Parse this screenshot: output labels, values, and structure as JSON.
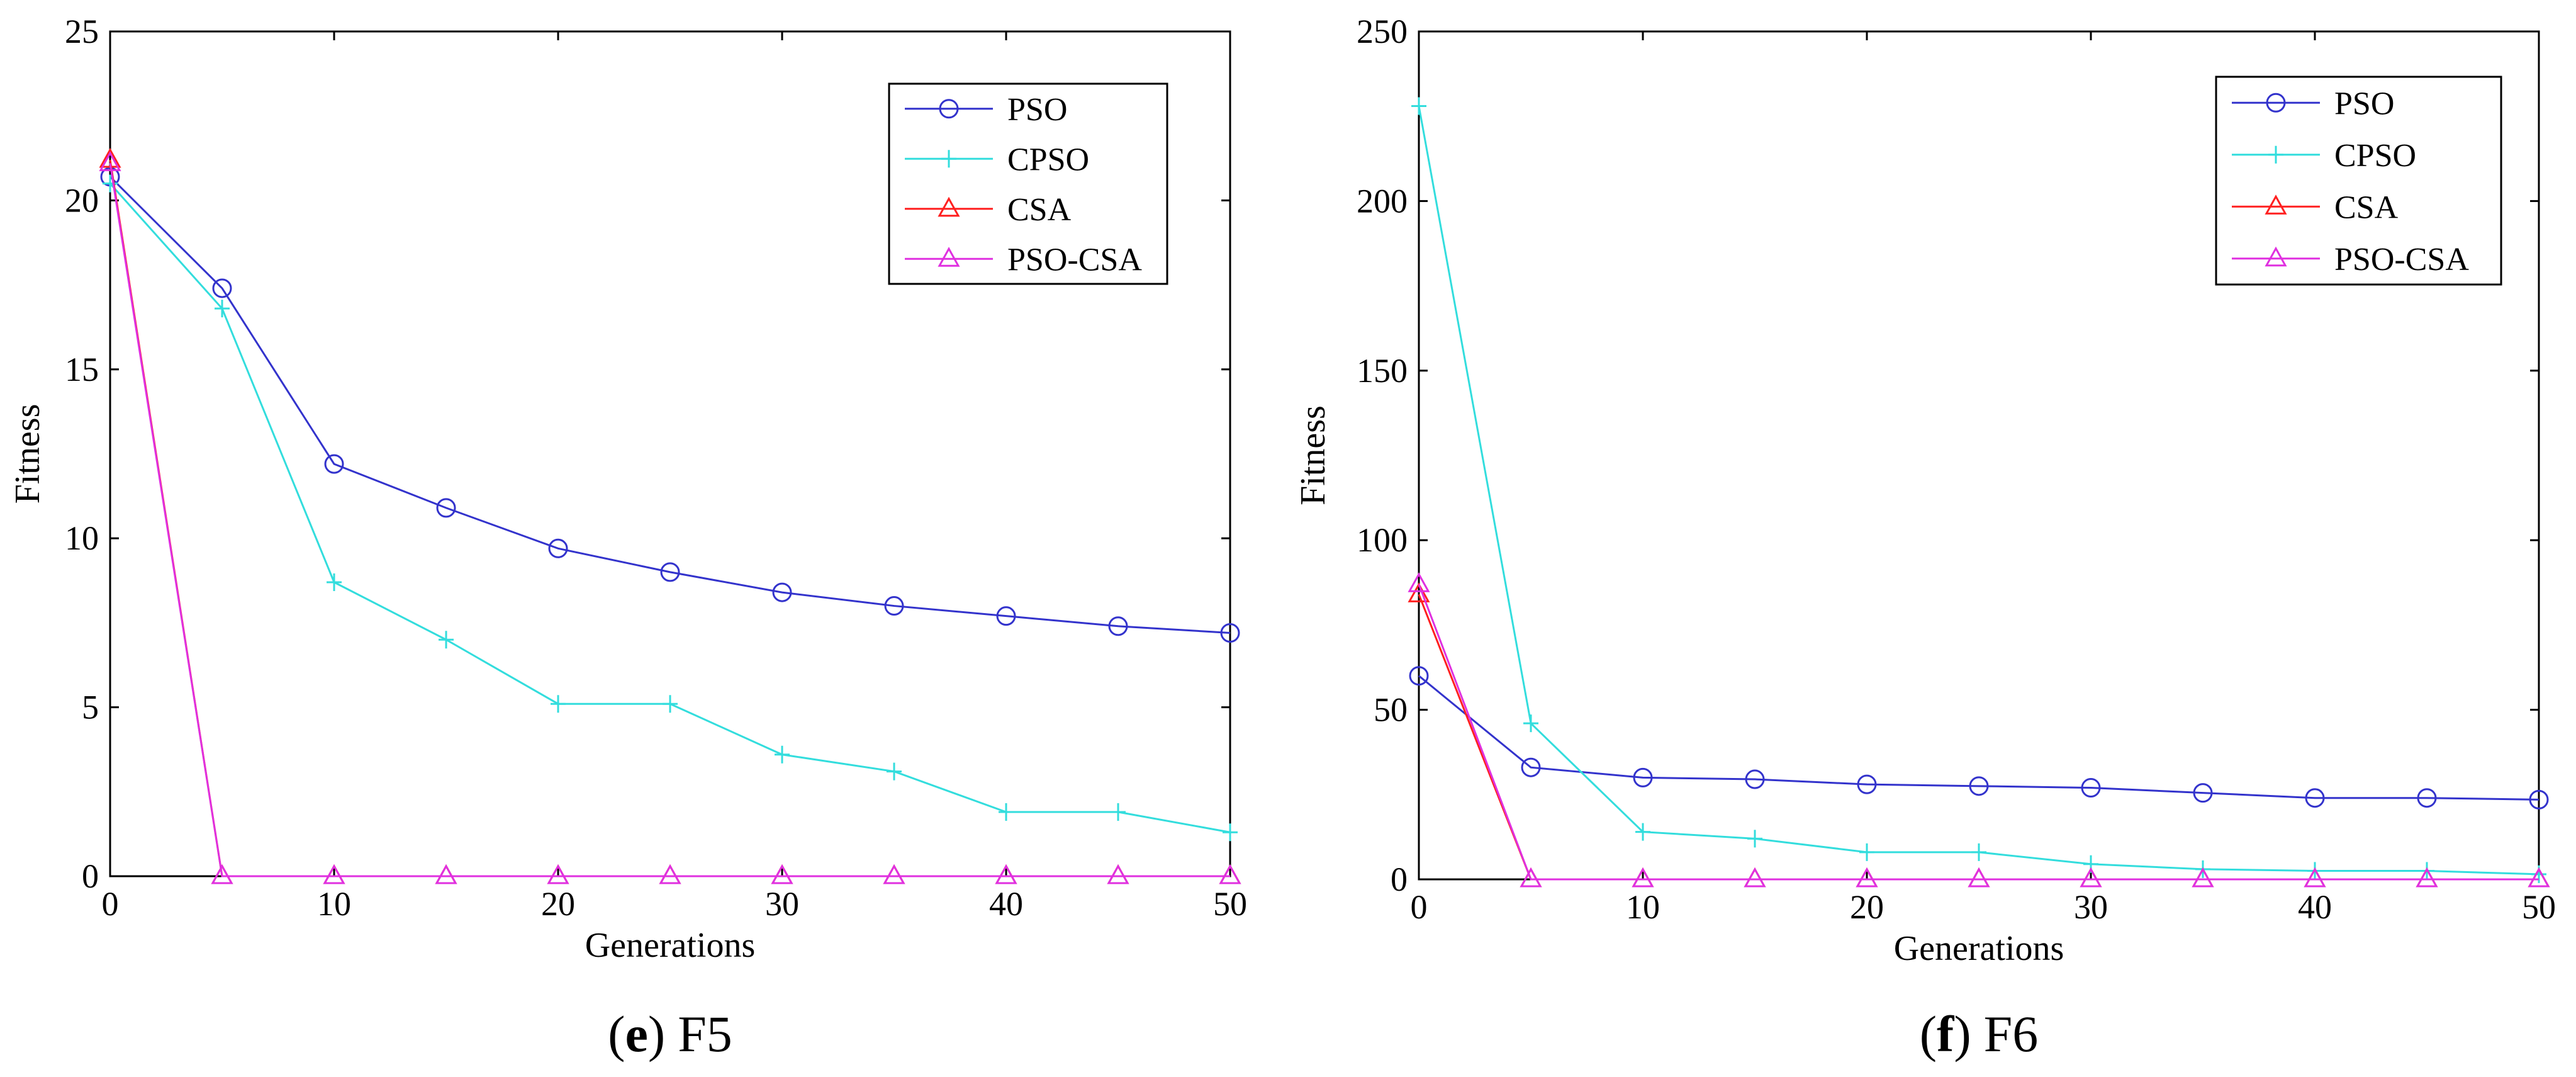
{
  "chart_data": [
    {
      "type": "line",
      "caption_letter": "e",
      "caption_rest": "F5",
      "caption_open": "(",
      "caption_close": ")",
      "xlabel": "Generations",
      "ylabel": "Fitness",
      "xlim": [
        0,
        50
      ],
      "ylim": [
        0,
        25
      ],
      "xticks": [
        0,
        10,
        20,
        30,
        40,
        50
      ],
      "yticks": [
        0,
        5,
        10,
        15,
        20,
        25
      ],
      "legend_position": "top-right",
      "x": [
        0,
        5,
        10,
        15,
        20,
        25,
        30,
        35,
        40,
        45,
        50
      ],
      "series": [
        {
          "name": "PSO",
          "color": "#3333cc",
          "marker": "circle",
          "values": [
            20.7,
            17.4,
            12.2,
            10.9,
            9.7,
            9.0,
            8.4,
            8.0,
            7.7,
            7.4,
            7.2
          ]
        },
        {
          "name": "CPSO",
          "color": "#33dddd",
          "marker": "plus",
          "values": [
            20.5,
            16.8,
            8.7,
            7.0,
            5.1,
            5.1,
            3.6,
            3.1,
            1.9,
            1.9,
            1.3
          ]
        },
        {
          "name": "CSA",
          "color": "#ff2020",
          "marker": "triangle",
          "values": [
            21.2,
            0.0,
            0.0,
            0.0,
            0.0,
            0.0,
            0.0,
            0.0,
            0.0,
            0.0,
            0.0
          ]
        },
        {
          "name": "PSO-CSA",
          "color": "#e030e0",
          "marker": "triangle",
          "values": [
            21.1,
            0.0,
            0.0,
            0.0,
            0.0,
            0.0,
            0.0,
            0.0,
            0.0,
            0.0,
            0.0
          ]
        }
      ]
    },
    {
      "type": "line",
      "caption_letter": "f",
      "caption_rest": "F6",
      "caption_open": "(",
      "caption_close": ")",
      "xlabel": "Generations",
      "ylabel": "Fitness",
      "xlim": [
        0,
        50
      ],
      "ylim": [
        0,
        250
      ],
      "xticks": [
        0,
        10,
        20,
        30,
        40,
        50
      ],
      "yticks": [
        0,
        50,
        100,
        150,
        200,
        250
      ],
      "legend_position": "top-right",
      "x": [
        0,
        5,
        10,
        15,
        20,
        25,
        30,
        35,
        40,
        45,
        50
      ],
      "series": [
        {
          "name": "PSO",
          "color": "#3333cc",
          "marker": "circle",
          "values": [
            60,
            33,
            30,
            29.5,
            28,
            27.5,
            27,
            25.5,
            24,
            24,
            23.5
          ]
        },
        {
          "name": "CPSO",
          "color": "#33dddd",
          "marker": "plus",
          "values": [
            228,
            46,
            14,
            12,
            8,
            8,
            4.5,
            3,
            2.5,
            2.5,
            1.5
          ]
        },
        {
          "name": "CSA",
          "color": "#ff2020",
          "marker": "triangle",
          "values": [
            84,
            0,
            0,
            0,
            0,
            0,
            0,
            0,
            0,
            0,
            0
          ]
        },
        {
          "name": "PSO-CSA",
          "color": "#e030e0",
          "marker": "triangle",
          "values": [
            87,
            0,
            0,
            0,
            0,
            0,
            0,
            0,
            0,
            0,
            0
          ]
        }
      ]
    }
  ]
}
